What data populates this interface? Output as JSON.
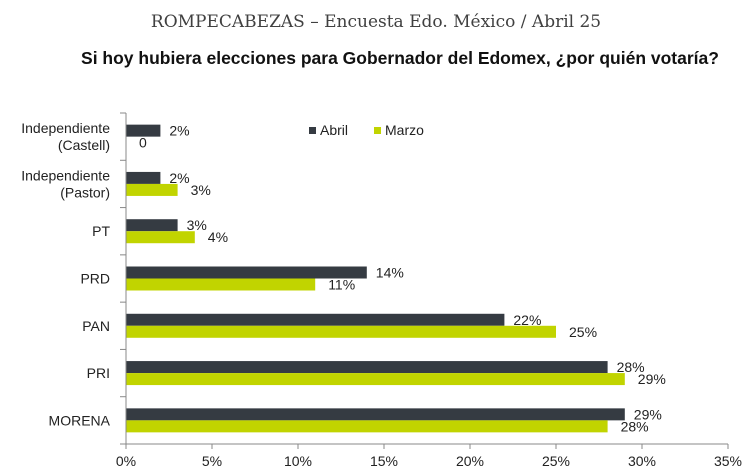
{
  "header": "ROMPECABEZAS – Encuesta Edo. México / Abril 25",
  "chart_data": {
    "type": "bar",
    "orientation": "horizontal",
    "title": "Si hoy hubiera elecciones para Gobernador del Edomex, ¿por quién votaría?",
    "categories": [
      [
        "Independiente",
        "(Castell)"
      ],
      [
        "Independiente",
        "(Pastor)"
      ],
      [
        "PT"
      ],
      [
        "PRD"
      ],
      [
        "PAN"
      ],
      [
        "PRI"
      ],
      [
        "MORENA"
      ]
    ],
    "series": [
      {
        "name": "Abril",
        "color": "#353b42",
        "values": [
          2,
          2,
          3,
          14,
          22,
          28,
          29
        ],
        "labels": [
          "2%",
          "2%",
          "3%",
          "14%",
          "22%",
          "28%",
          "29%"
        ]
      },
      {
        "name": "Marzo",
        "color": "#c1d400",
        "values": [
          0,
          3,
          4,
          11,
          25,
          29,
          28
        ],
        "labels": [
          "0",
          "3%",
          "4%",
          "11%",
          "25%",
          "29%",
          "28%"
        ]
      }
    ],
    "xlim": [
      0,
      35
    ],
    "xticks": [
      "0%",
      "5%",
      "10%",
      "15%",
      "20%",
      "25%",
      "30%",
      "35%"
    ],
    "legend_position": "top-center",
    "grid": false
  }
}
